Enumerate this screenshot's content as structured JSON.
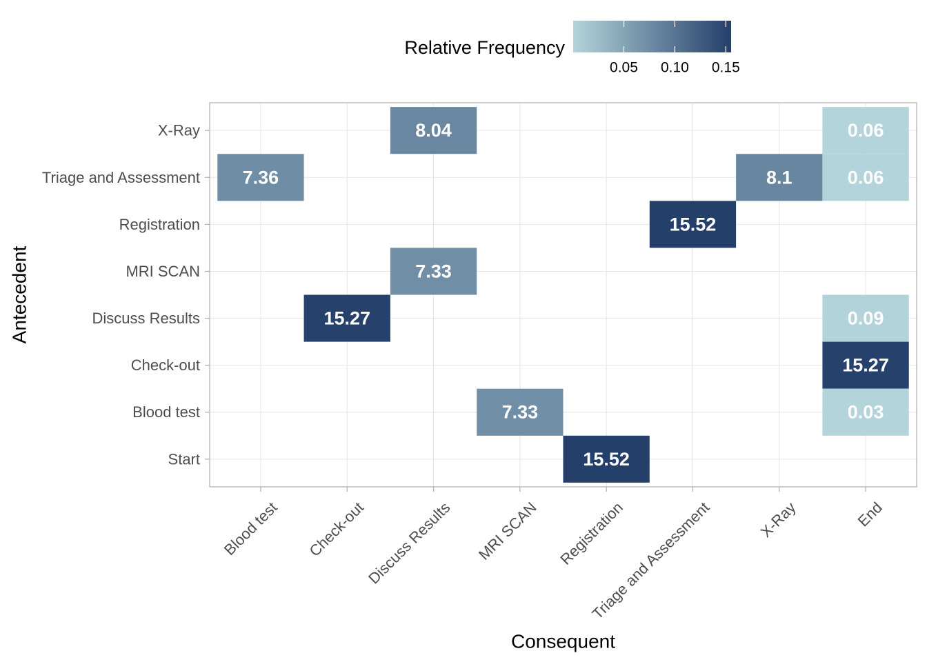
{
  "chart_data": {
    "type": "heatmap",
    "xlabel": "Consequent",
    "ylabel": "Antecedent",
    "x_categories": [
      "Blood test",
      "Check-out",
      "Discuss Results",
      "MRI SCAN",
      "Registration",
      "Triage and Assessment",
      "X-Ray",
      "End"
    ],
    "y_categories": [
      "Start",
      "Blood test",
      "Check-out",
      "Discuss Results",
      "MRI SCAN",
      "Registration",
      "Triage and Assessment",
      "X-Ray"
    ],
    "cells": [
      {
        "antecedent": "X-Ray",
        "consequent": "Discuss Results",
        "label": "8.04",
        "relative_frequency": 0.0804
      },
      {
        "antecedent": "X-Ray",
        "consequent": "End",
        "label": "0.06",
        "relative_frequency": 0.0006
      },
      {
        "antecedent": "Triage and Assessment",
        "consequent": "Blood test",
        "label": "7.36",
        "relative_frequency": 0.0736
      },
      {
        "antecedent": "Triage and Assessment",
        "consequent": "X-Ray",
        "label": "8.1",
        "relative_frequency": 0.081
      },
      {
        "antecedent": "Triage and Assessment",
        "consequent": "End",
        "label": "0.06",
        "relative_frequency": 0.0006
      },
      {
        "antecedent": "Registration",
        "consequent": "Triage and Assessment",
        "label": "15.52",
        "relative_frequency": 0.1552
      },
      {
        "antecedent": "MRI SCAN",
        "consequent": "Discuss Results",
        "label": "7.33",
        "relative_frequency": 0.0733
      },
      {
        "antecedent": "Discuss Results",
        "consequent": "Check-out",
        "label": "15.27",
        "relative_frequency": 0.1527
      },
      {
        "antecedent": "Discuss Results",
        "consequent": "End",
        "label": "0.09",
        "relative_frequency": 0.0009
      },
      {
        "antecedent": "Check-out",
        "consequent": "End",
        "label": "15.27",
        "relative_frequency": 0.1527
      },
      {
        "antecedent": "Blood test",
        "consequent": "MRI SCAN",
        "label": "7.33",
        "relative_frequency": 0.0733
      },
      {
        "antecedent": "Blood test",
        "consequent": "End",
        "label": "0.03",
        "relative_frequency": 0.0003
      },
      {
        "antecedent": "Start",
        "consequent": "Registration",
        "label": "15.52",
        "relative_frequency": 0.1552
      }
    ],
    "legend": {
      "title": "Relative Frequency",
      "position": "top",
      "range": [
        0.0003,
        0.1552
      ],
      "ticks": [
        0.05,
        0.1,
        0.15
      ],
      "tick_labels": [
        "0.05",
        "0.10",
        "0.15"
      ],
      "color_low": "#b3d4da",
      "color_high": "#243f6a"
    },
    "grid": true,
    "panel_border_color": "#b3b3b3",
    "grid_color": "#e6e6e6"
  }
}
